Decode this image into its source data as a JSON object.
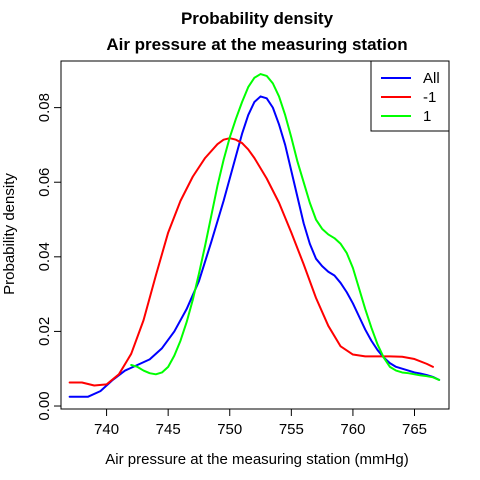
{
  "chart_data": {
    "type": "line",
    "title": "Probability density",
    "subtitle": "Air pressure at the measuring station",
    "xlabel": "Air pressure at the measuring station (mmHg)",
    "ylabel": "Probability density",
    "xlim": [
      736.3,
      767.8
    ],
    "ylim": [
      -0.0008,
      0.0925
    ],
    "xticks": [
      740,
      745,
      750,
      755,
      760,
      765
    ],
    "yticks": [
      0.0,
      0.02,
      0.04,
      0.06,
      0.08
    ],
    "ytick_labels": [
      "0.00",
      "0.02",
      "0.04",
      "0.06",
      "0.08"
    ],
    "grid": false,
    "legend_position": "top-right",
    "series": [
      {
        "name": "All",
        "color": "#0000ff",
        "x": [
          737.0,
          738.5,
          739.5,
          740.5,
          741.5,
          742.5,
          743.5,
          744.5,
          745.5,
          746.5,
          747.5,
          748.5,
          749.5,
          750.5,
          751.0,
          751.5,
          752.0,
          752.5,
          753.0,
          753.5,
          754.0,
          754.5,
          755.0,
          755.5,
          756.0,
          756.5,
          757.0,
          757.5,
          758.0,
          758.5,
          759.0,
          759.5,
          760.0,
          760.5,
          761.0,
          761.5,
          762.0,
          762.5,
          763.0,
          763.5,
          764.0,
          764.5,
          765.0,
          765.5,
          766.0,
          766.5,
          767.0
        ],
        "y": [
          0.0025,
          0.0025,
          0.004,
          0.007,
          0.0095,
          0.011,
          0.0125,
          0.0155,
          0.02,
          0.026,
          0.0335,
          0.044,
          0.055,
          0.067,
          0.073,
          0.078,
          0.0815,
          0.083,
          0.0825,
          0.08,
          0.0755,
          0.07,
          0.063,
          0.056,
          0.049,
          0.0435,
          0.0395,
          0.0375,
          0.036,
          0.035,
          0.033,
          0.0305,
          0.0275,
          0.024,
          0.0205,
          0.0175,
          0.015,
          0.013,
          0.0115,
          0.0105,
          0.01,
          0.0095,
          0.009,
          0.0087,
          0.0083,
          0.0078,
          0.007
        ]
      },
      {
        "name": "-1",
        "color": "#ff0000",
        "x": [
          737.0,
          738.0,
          739.0,
          740.0,
          741.0,
          742.0,
          743.0,
          744.0,
          745.0,
          746.0,
          747.0,
          748.0,
          749.0,
          749.5,
          750.0,
          750.5,
          751.0,
          751.5,
          752.0,
          753.0,
          754.0,
          755.0,
          756.0,
          757.0,
          758.0,
          759.0,
          760.0,
          761.0,
          762.0,
          763.0,
          764.0,
          765.0,
          766.0,
          766.5
        ],
        "y": [
          0.0063,
          0.0063,
          0.0055,
          0.0058,
          0.0085,
          0.014,
          0.023,
          0.035,
          0.0465,
          0.055,
          0.0615,
          0.0665,
          0.0702,
          0.0714,
          0.0718,
          0.0714,
          0.0705,
          0.0688,
          0.0665,
          0.061,
          0.0545,
          0.0465,
          0.038,
          0.029,
          0.0215,
          0.016,
          0.0138,
          0.0133,
          0.0133,
          0.0133,
          0.0132,
          0.0126,
          0.0113,
          0.0105
        ]
      },
      {
        "name": "1",
        "color": "#00ff00",
        "x": [
          742.0,
          742.5,
          743.0,
          743.5,
          744.0,
          744.5,
          745.0,
          745.5,
          746.0,
          746.5,
          747.0,
          747.5,
          748.0,
          748.5,
          749.0,
          749.5,
          750.0,
          750.5,
          751.0,
          751.5,
          752.0,
          752.5,
          753.0,
          753.5,
          754.0,
          754.5,
          755.0,
          755.5,
          756.0,
          756.5,
          757.0,
          757.5,
          758.0,
          758.5,
          759.0,
          759.5,
          760.0,
          760.5,
          761.0,
          761.5,
          762.0,
          762.5,
          763.0,
          763.5,
          764.0,
          764.5,
          765.0,
          765.5,
          766.0,
          766.5,
          767.0
        ],
        "y": [
          0.011,
          0.0105,
          0.0095,
          0.0088,
          0.0085,
          0.009,
          0.0105,
          0.0135,
          0.0175,
          0.0225,
          0.0285,
          0.0355,
          0.043,
          0.051,
          0.059,
          0.066,
          0.072,
          0.077,
          0.0815,
          0.0855,
          0.088,
          0.089,
          0.0885,
          0.0865,
          0.083,
          0.078,
          0.072,
          0.0655,
          0.06,
          0.0545,
          0.05,
          0.0475,
          0.046,
          0.045,
          0.0435,
          0.041,
          0.037,
          0.0315,
          0.026,
          0.021,
          0.0165,
          0.013,
          0.0105,
          0.0095,
          0.009,
          0.0088,
          0.0085,
          0.0082,
          0.008,
          0.0077,
          0.007
        ]
      }
    ]
  }
}
